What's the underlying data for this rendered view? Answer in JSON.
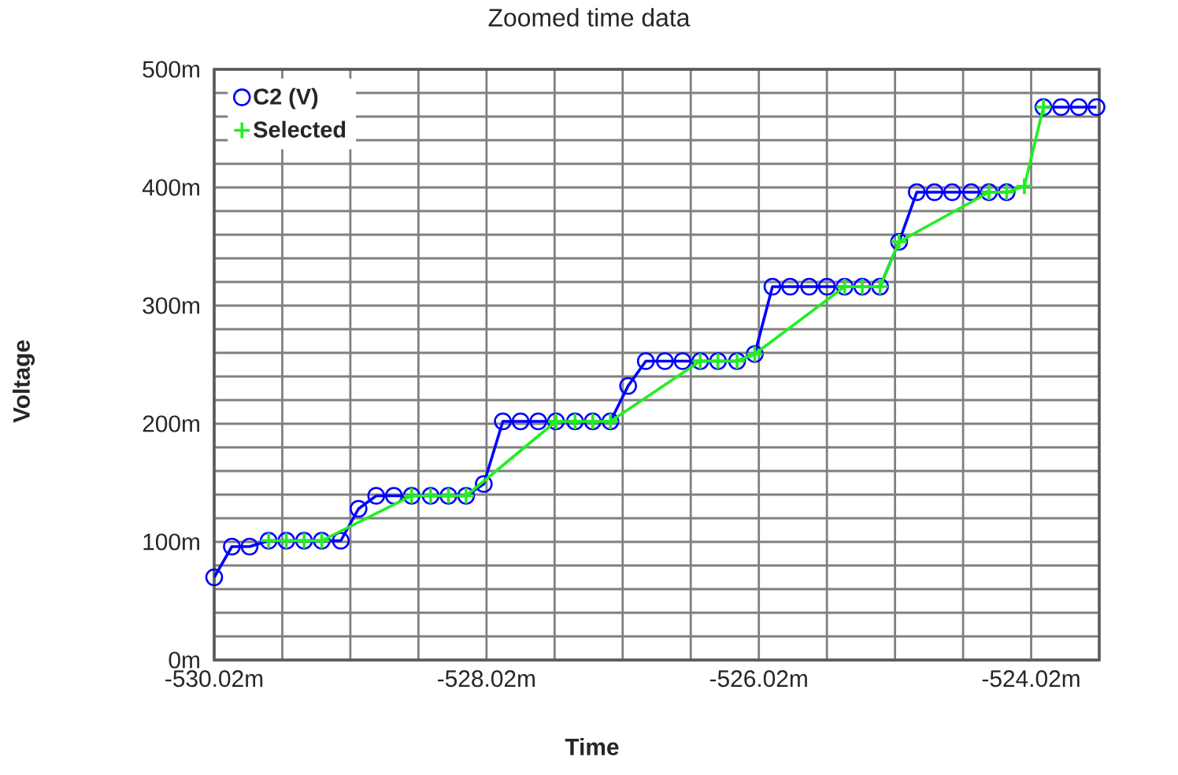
{
  "chart_data": {
    "type": "line",
    "title": "Zoomed time data",
    "xlabel": "Time",
    "ylabel": "Voltage",
    "xlim": [
      -530.02,
      -523.52
    ],
    "xticks": [
      {
        "value": -530.02,
        "label": "-530.02m"
      },
      {
        "value": -529.52,
        "label": null
      },
      {
        "value": -529.02,
        "label": null
      },
      {
        "value": -528.52,
        "label": null
      },
      {
        "value": -528.02,
        "label": "-528.02m"
      },
      {
        "value": -527.52,
        "label": null
      },
      {
        "value": -527.02,
        "label": null
      },
      {
        "value": -526.52,
        "label": null
      },
      {
        "value": -526.02,
        "label": "-526.02m"
      },
      {
        "value": -525.52,
        "label": null
      },
      {
        "value": -525.02,
        "label": null
      },
      {
        "value": -524.52,
        "label": null
      },
      {
        "value": -524.02,
        "label": "-524.02m"
      }
    ],
    "ylim": [
      0,
      500
    ],
    "yticks": [
      {
        "value": 0,
        "label": "0m"
      },
      {
        "value": 20,
        "label": null
      },
      {
        "value": 40,
        "label": null
      },
      {
        "value": 60,
        "label": null
      },
      {
        "value": 80,
        "label": null
      },
      {
        "value": 100,
        "label": "100m"
      },
      {
        "value": 120,
        "label": null
      },
      {
        "value": 140,
        "label": null
      },
      {
        "value": 160,
        "label": null
      },
      {
        "value": 180,
        "label": null
      },
      {
        "value": 200,
        "label": "200m"
      },
      {
        "value": 220,
        "label": null
      },
      {
        "value": 240,
        "label": null
      },
      {
        "value": 260,
        "label": null
      },
      {
        "value": 280,
        "label": null
      },
      {
        "value": 300,
        "label": "300m"
      },
      {
        "value": 320,
        "label": null
      },
      {
        "value": 340,
        "label": null
      },
      {
        "value": 360,
        "label": null
      },
      {
        "value": 380,
        "label": null
      },
      {
        "value": 400,
        "label": "400m"
      },
      {
        "value": 420,
        "label": null
      },
      {
        "value": 440,
        "label": null
      },
      {
        "value": 460,
        "label": null
      },
      {
        "value": 480,
        "label": null
      },
      {
        "value": 500,
        "label": "500m"
      }
    ],
    "grid": true,
    "legend": "top left",
    "series": [
      {
        "name": "C2 (V)",
        "color": "#0000ff",
        "marker": "circle",
        "x": [
          -530.02,
          -529.89,
          -529.76,
          -529.62,
          -529.49,
          -529.36,
          -529.23,
          -529.09,
          -528.96,
          -528.83,
          -528.7,
          -528.57,
          -528.43,
          -528.3,
          -528.17,
          -528.04,
          -527.9,
          -527.77,
          -527.64,
          -527.51,
          -527.37,
          -527.24,
          -527.11,
          -526.98,
          -526.85,
          -526.71,
          -526.58,
          -526.45,
          -526.32,
          -526.18,
          -526.05,
          -525.92,
          -525.79,
          -525.65,
          -525.52,
          -525.39,
          -525.26,
          -525.13,
          -524.99,
          -524.86,
          -524.73,
          -524.6,
          -524.46,
          -524.33,
          -524.2,
          -524.07,
          -523.93,
          -523.8,
          -523.67,
          -523.54
        ],
        "values": [
          70,
          96,
          96,
          101,
          101,
          101,
          101,
          101,
          128,
          139,
          139,
          139,
          139,
          139,
          139,
          149,
          202,
          202,
          202,
          202,
          202,
          202,
          202,
          232,
          253,
          253,
          253,
          253,
          253,
          253,
          259,
          316,
          316,
          316,
          316,
          316,
          316,
          316,
          354,
          396,
          396,
          396,
          396,
          396,
          396,
          null,
          468,
          468,
          468,
          468
        ]
      },
      {
        "name": "Selected",
        "color": "#22ee22",
        "marker": "cross",
        "x": [
          -529.62,
          -529.49,
          -529.36,
          -529.23,
          -528.57,
          -528.43,
          -528.3,
          -528.17,
          -527.51,
          -527.37,
          -527.24,
          -527.11,
          -526.45,
          -526.32,
          -526.18,
          -526.05,
          -525.39,
          -525.26,
          -525.13,
          -524.99,
          -524.33,
          -524.2,
          -524.07,
          -523.93
        ],
        "values": [
          101,
          101,
          101,
          101,
          139,
          139,
          139,
          139,
          202,
          202,
          202,
          202,
          253,
          253,
          253,
          259,
          316,
          316,
          316,
          354,
          396,
          396,
          401,
          468
        ]
      }
    ]
  }
}
